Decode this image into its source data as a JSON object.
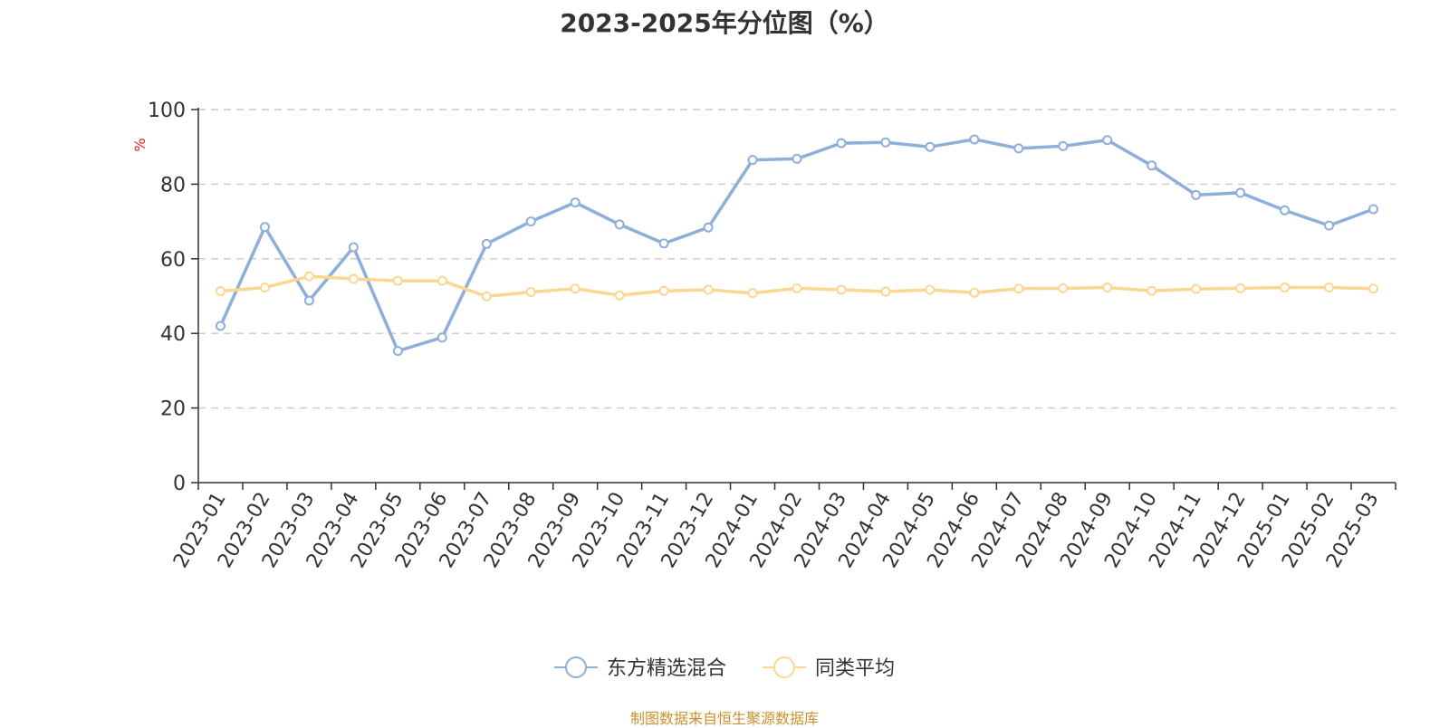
{
  "chart_data": {
    "type": "line",
    "title": "2023-2025年分位图（%）",
    "ylabel": "%",
    "ylim": [
      0,
      100
    ],
    "yticks": [
      0,
      20,
      40,
      60,
      80,
      100
    ],
    "grid": true,
    "legend_position": "bottom-center",
    "categories": [
      "2023-01",
      "2023-02",
      "2023-03",
      "2023-04",
      "2023-05",
      "2023-06",
      "2023-07",
      "2023-08",
      "2023-09",
      "2023-10",
      "2023-11",
      "2023-12",
      "2024-01",
      "2024-02",
      "2024-03",
      "2024-04",
      "2024-05",
      "2024-06",
      "2024-07",
      "2024-08",
      "2024-09",
      "2024-10",
      "2024-11",
      "2024-12",
      "2025-01",
      "2025-02",
      "2025-03"
    ],
    "series": [
      {
        "name": "东方精选混合",
        "color": "#8eaedc",
        "values": [
          42.0,
          68.5,
          48.8,
          63.1,
          35.3,
          38.9,
          64.0,
          70.0,
          75.1,
          69.2,
          64.1,
          68.4,
          86.5,
          86.8,
          91.0,
          91.2,
          90.0,
          92.0,
          89.6,
          90.2,
          91.8,
          85.0,
          77.1,
          77.7,
          73.0,
          68.9,
          73.3
        ]
      },
      {
        "name": "同类平均",
        "color": "#fcd792",
        "values": [
          51.3,
          52.3,
          55.3,
          54.6,
          54.1,
          54.1,
          49.9,
          51.1,
          52.0,
          50.2,
          51.4,
          51.7,
          50.8,
          52.1,
          51.7,
          51.2,
          51.7,
          50.9,
          52.0,
          52.1,
          52.3,
          51.4,
          51.9,
          52.1,
          52.3,
          52.3,
          52.0
        ]
      }
    ]
  },
  "source_note": "制图数据来自恒生聚源数据库"
}
